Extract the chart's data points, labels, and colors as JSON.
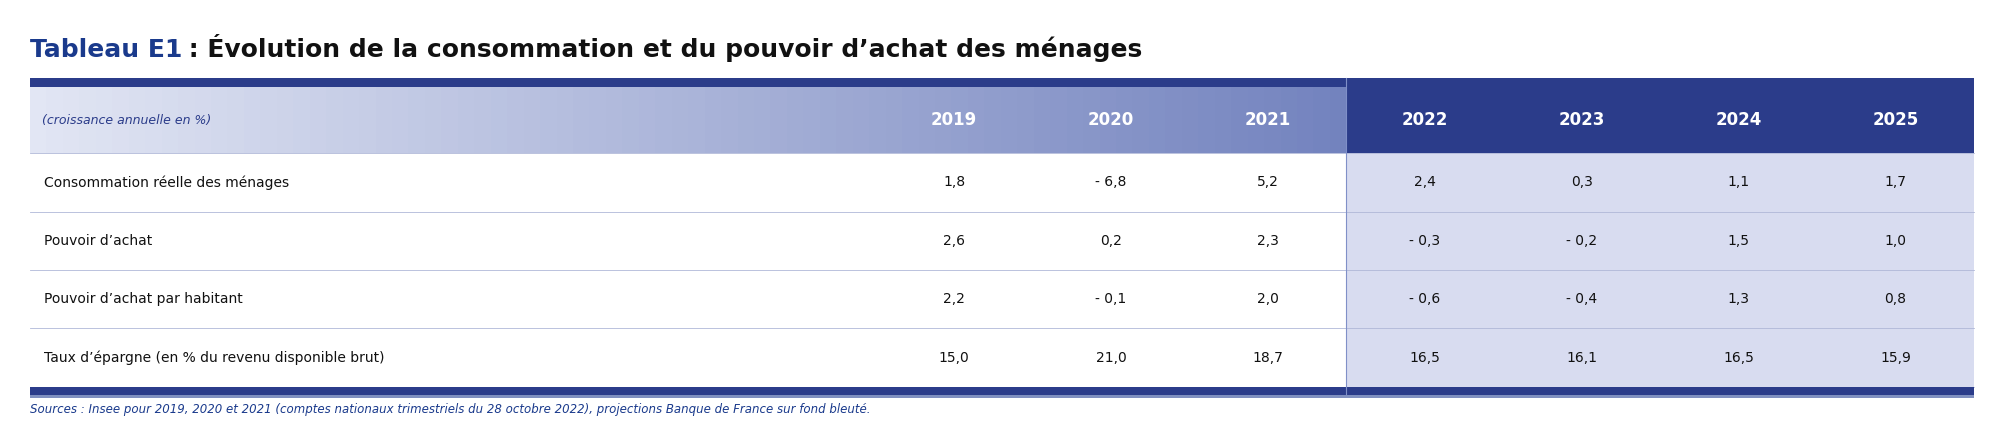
{
  "title_prefix": "Tableau E1",
  "title_colon": " : ",
  "title_rest": "Évolution de la consommation et du pouvoir d’achat des ménages",
  "subtitle": "(croissance annuelle en %)",
  "columns": [
    "2019",
    "2020",
    "2021",
    "2022",
    "2023",
    "2024",
    "2025"
  ],
  "rows": [
    {
      "label": "Consommation réelle des ménages",
      "values": [
        "1,8",
        "- 6,8",
        "5,2",
        "2,4",
        "0,3",
        "1,1",
        "1,7"
      ]
    },
    {
      "label": "Pouvoir d’achat",
      "values": [
        "2,6",
        "0,2",
        "2,3",
        "- 0,3",
        "- 0,2",
        "1,5",
        "1,0"
      ]
    },
    {
      "label": "Pouvoir d’achat par habitant",
      "values": [
        "2,2",
        "- 0,1",
        "2,0",
        "- 0,6",
        "- 0,4",
        "1,3",
        "0,8"
      ]
    },
    {
      "label": "Taux d’épargne (en % du revenu disponible brut)",
      "values": [
        "15,0",
        "21,0",
        "18,7",
        "16,5",
        "16,1",
        "16,5",
        "15,9"
      ]
    }
  ],
  "source_text": "Sources : Insee pour 2019, 2020 et 2021 (comptes nationaux trimestriels du 28 octobre 2022), projections Banque de France sur fond bleuté.",
  "bg_color": "#ffffff",
  "header_bg_dark": "#2B3C8A",
  "header_text_color": "#ffffff",
  "body_text_color": "#111111",
  "title_prefix_color": "#1a3a8c",
  "subtitle_color": "#2B3C8A",
  "source_color": "#1a3a8c",
  "col_split": 3,
  "gradient_left_color": "#D0D5EC",
  "gradient_mid_color": "#9BA8D5",
  "right_section_bg": "#CDD3E8",
  "row_bg_white": "#ffffff",
  "row_bg_shaded": "#D8DCF0",
  "bottom_bar_color": "#2B3C8A"
}
